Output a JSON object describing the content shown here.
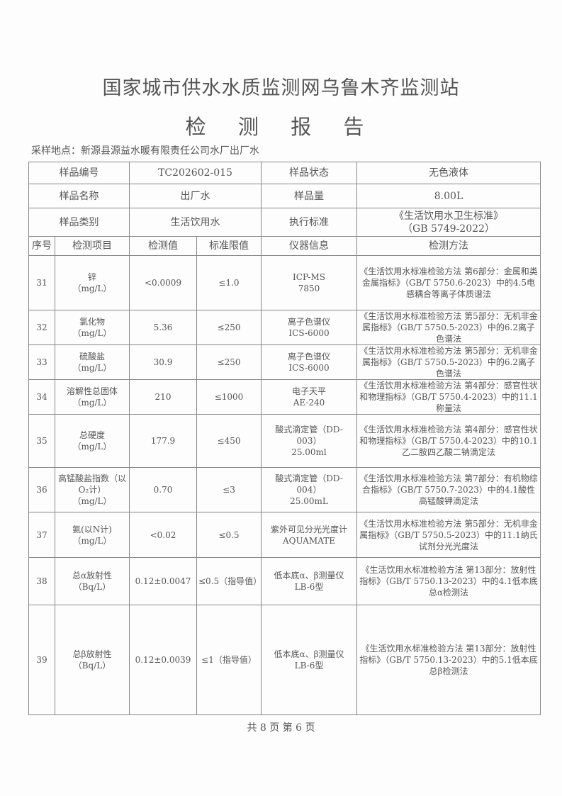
{
  "header": {
    "title": "国家城市供水水质监测网乌鲁木齐监测站",
    "subtitle": "检 测 报 告"
  },
  "sampling_location": "采样地点：新源县源益水暖有限责任公司水厂出厂水",
  "sample_info": [
    {
      "label1": "样品编号",
      "value1": "TC202602-015",
      "label2": "样品状态",
      "value2": "无色液体"
    },
    {
      "label1": "样品名称",
      "value1": "出厂水",
      "label2": "样品量",
      "value2": "8.00L"
    },
    {
      "label1": "样品类别",
      "value1": "生活饮用水",
      "label2": "执行标准",
      "value2": "《生活饮用水卫生标准》",
      "value2b": "（GB 5749-2022）"
    }
  ],
  "columns": [
    "序号",
    "检测项目",
    "检测值",
    "标准限值",
    "仪器信息",
    "检测方法"
  ],
  "rows": [
    {
      "no": "31",
      "item": "锌",
      "unit": "（mg/L）",
      "value": "<0.0009",
      "limit": "≤1.0",
      "inst": "ICP-MS",
      "inst2": "7850",
      "method": "《生活饮用水标准检验方法 第6部分：金属和类金属指标》（GB/T 5750.6-2023）中的4.5电感耦合等离子体质谱法"
    },
    {
      "no": "32",
      "item": "氯化物",
      "unit": "（mg/L）",
      "value": "5.36",
      "limit": "≤250",
      "inst": "离子色谱仪",
      "inst2": "ICS-6000",
      "method": "《生活饮用水标准检验方法 第5部分：无机非金属指标》（GB/T 5750.5-2023）中的6.2离子色谱法"
    },
    {
      "no": "33",
      "item": "硫酸盐",
      "unit": "（mg/L）",
      "value": "30.9",
      "limit": "≤250",
      "inst": "离子色谱仪",
      "inst2": "ICS-6000",
      "method": "《生活饮用水标准检验方法 第5部分：无机非金属指标》（GB/T 5750.5-2023）中的6.2离子色谱法"
    },
    {
      "no": "34",
      "item": "溶解性总固体",
      "unit": "（mg/L）",
      "value": "210",
      "limit": "≤1000",
      "inst": "电子天平",
      "inst2": "AE-240",
      "method": "《生活饮用水标准检验方法 第4部分：感官性状和物理指标》（GB/T 5750.4-2023）中的11.1称量法"
    },
    {
      "no": "35",
      "item": "总硬度",
      "unit": "（mg/L）",
      "value": "177.9",
      "limit": "≤450",
      "inst": "酸式滴定管（DD-003）",
      "inst2": "25.00ml",
      "method": "《生活饮用水标准检验方法 第4部分：感官性状和物理指标》（GB/T 5750.4-2023）中的10.1乙二胺四乙酸二钠滴定法"
    },
    {
      "no": "36",
      "item": "高锰酸盐指数（以O₂计）",
      "unit": "（mg/L）",
      "value": "0.70",
      "limit": "≤3",
      "inst": "酸式滴定管（DD-004）",
      "inst2": "25.00mL",
      "method": "《生活饮用水标准检验方法 第7部分：有机物综合指标》（GB/T 5750.7-2023）中的4.1酸性高锰酸钾滴定法"
    },
    {
      "no": "37",
      "item": "氨(以N计)",
      "unit": "（mg/L）",
      "value": "<0.02",
      "limit": "≤0.5",
      "inst": "紫外可见分光光度计",
      "inst2": "AQUAMATE",
      "method": "《生活饮用水标准检验方法 第5部分：无机非金属指标》（GB/T 5750.5-2023）中的11.1纳氏试剂分光光度法"
    },
    {
      "no": "38",
      "item": "总α放射性",
      "unit": "（Bq/L）",
      "value": "0.12±0.0047",
      "limit": "≤0.5（指导值）",
      "inst": "低本底α、β测量仪",
      "inst2": "LB-6型",
      "method": "《生活饮用水标准检验方法 第13部分：放射性指标》（GB/T 5750.13-2023）中的4.1低本底总α检测法"
    },
    {
      "no": "39",
      "item": "总β放射性",
      "unit": "（Bq/L）",
      "value": "0.12±0.0039",
      "limit": "≤1（指导值）",
      "inst": "低本底α、β测量仪",
      "inst2": "LB-6型",
      "method": "《生活饮用水标准检验方法 第13部分：放射性指标》（GB/T 5750.13-2023）中的5.1低本底总β检测法"
    }
  ],
  "footer": "共 8 页 第 6 页"
}
